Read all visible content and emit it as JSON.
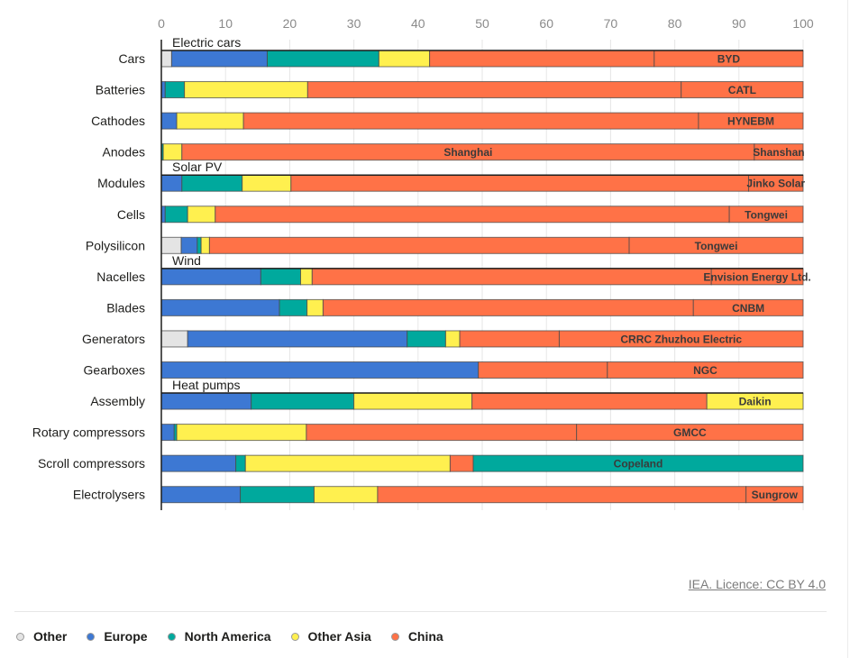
{
  "chart_data": {
    "type": "bar",
    "orientation": "horizontal",
    "stacked": true,
    "title": "",
    "xlabel": "",
    "ylabel": "",
    "xlim": [
      0,
      100
    ],
    "xticks": [
      0,
      10,
      20,
      30,
      40,
      50,
      60,
      70,
      80,
      90,
      100
    ],
    "grid": true,
    "legend_position": "bottom-left",
    "series_names": [
      "Other",
      "Europe",
      "North America",
      "Other Asia",
      "China"
    ],
    "colors": {
      "Other": "#e4e4e4",
      "Europe": "#3d78d3",
      "North America": "#00a99d",
      "Other Asia": "#fff04f",
      "China": "#ff7247"
    },
    "groups": [
      {
        "name": "Electric cars",
        "rows": [
          {
            "category": "Cars",
            "segments": [
              {
                "series": "Other",
                "value": 1.6
              },
              {
                "series": "Europe",
                "value": 14.9
              },
              {
                "series": "North America",
                "value": 17.4
              },
              {
                "series": "Other Asia",
                "value": 7.9
              },
              {
                "series": "China",
                "value": 35.0
              },
              {
                "series": "China",
                "value": 23.2,
                "label": "BYD"
              }
            ]
          },
          {
            "category": "Batteries",
            "segments": [
              {
                "series": "Europe",
                "value": 0.6
              },
              {
                "series": "North America",
                "value": 3.0
              },
              {
                "series": "Other Asia",
                "value": 19.2
              },
              {
                "series": "China",
                "value": 58.2
              },
              {
                "series": "China",
                "value": 19.0,
                "label": "CATL"
              }
            ]
          },
          {
            "category": "Cathodes",
            "segments": [
              {
                "series": "Europe",
                "value": 2.4
              },
              {
                "series": "Other Asia",
                "value": 10.4
              },
              {
                "series": "China",
                "value": 70.9
              },
              {
                "series": "China",
                "value": 16.3,
                "label": "HYNEBM"
              }
            ]
          },
          {
            "category": "Anodes",
            "segments": [
              {
                "series": "North America",
                "value": 0.3
              },
              {
                "series": "Other Asia",
                "value": 2.9
              },
              {
                "series": "China",
                "value": 89.2,
                "label": "Shanghai"
              },
              {
                "series": "China",
                "value": 7.6,
                "label": "Shanshan"
              }
            ]
          }
        ]
      },
      {
        "name": "Solar PV",
        "rows": [
          {
            "category": "Modules",
            "segments": [
              {
                "series": "Europe",
                "value": 3.2
              },
              {
                "series": "North America",
                "value": 9.4
              },
              {
                "series": "Other Asia",
                "value": 7.6
              },
              {
                "series": "China",
                "value": 71.3
              },
              {
                "series": "China",
                "value": 8.5,
                "label": "Jinko Solar"
              }
            ]
          },
          {
            "category": "Cells",
            "segments": [
              {
                "series": "Europe",
                "value": 0.6
              },
              {
                "series": "North America",
                "value": 3.5
              },
              {
                "series": "Other Asia",
                "value": 4.3
              },
              {
                "series": "China",
                "value": 80.1
              },
              {
                "series": "China",
                "value": 11.5,
                "label": "Tongwei"
              }
            ]
          },
          {
            "category": "Polysilicon",
            "segments": [
              {
                "series": "Other",
                "value": 3.1
              },
              {
                "series": "Europe",
                "value": 2.5
              },
              {
                "series": "North America",
                "value": 0.6
              },
              {
                "series": "Other Asia",
                "value": 1.3
              },
              {
                "series": "China",
                "value": 65.4
              },
              {
                "series": "China",
                "value": 27.1,
                "label": "Tongwei"
              }
            ]
          }
        ]
      },
      {
        "name": "Wind",
        "rows": [
          {
            "category": "Nacelles",
            "segments": [
              {
                "series": "Europe",
                "value": 15.5
              },
              {
                "series": "North America",
                "value": 6.2
              },
              {
                "series": "Other Asia",
                "value": 1.8
              },
              {
                "series": "China",
                "value": 62.2
              },
              {
                "series": "China",
                "value": 14.3,
                "label": "Envision Energy Ltd."
              }
            ]
          },
          {
            "category": "Blades",
            "segments": [
              {
                "series": "Europe",
                "value": 18.4
              },
              {
                "series": "North America",
                "value": 4.3
              },
              {
                "series": "Other Asia",
                "value": 2.5
              },
              {
                "series": "China",
                "value": 57.7
              },
              {
                "series": "China",
                "value": 17.1,
                "label": "CNBM"
              }
            ]
          },
          {
            "category": "Generators",
            "segments": [
              {
                "series": "Other",
                "value": 4.1
              },
              {
                "series": "Europe",
                "value": 34.2
              },
              {
                "series": "North America",
                "value": 6.0
              },
              {
                "series": "Other Asia",
                "value": 2.2
              },
              {
                "series": "China",
                "value": 15.5
              },
              {
                "series": "China",
                "value": 38.0,
                "label": "CRRC Zhuzhou Electric"
              }
            ]
          },
          {
            "category": "Gearboxes",
            "segments": [
              {
                "series": "Europe",
                "value": 49.4
              },
              {
                "series": "China",
                "value": 20.1
              },
              {
                "series": "China",
                "value": 30.5,
                "label": "NGC"
              }
            ]
          }
        ]
      },
      {
        "name": "Heat pumps",
        "rows": [
          {
            "category": "Assembly",
            "segments": [
              {
                "series": "Europe",
                "value": 14.0
              },
              {
                "series": "North America",
                "value": 16.0
              },
              {
                "series": "Other Asia",
                "value": 18.4
              },
              {
                "series": "China",
                "value": 36.6
              },
              {
                "series": "Other Asia",
                "value": 15.0,
                "label": "Daikin"
              }
            ]
          },
          {
            "category": "Rotary compressors",
            "segments": [
              {
                "series": "Europe",
                "value": 2.0
              },
              {
                "series": "North America",
                "value": 0.4
              },
              {
                "series": "Other Asia",
                "value": 20.2
              },
              {
                "series": "China",
                "value": 42.1
              },
              {
                "series": "China",
                "value": 35.3,
                "label": "GMCC"
              }
            ]
          },
          {
            "category": "Scroll compressors",
            "segments": [
              {
                "series": "Europe",
                "value": 11.6
              },
              {
                "series": "North America",
                "value": 1.5
              },
              {
                "series": "Other Asia",
                "value": 31.9
              },
              {
                "series": "China",
                "value": 3.6
              },
              {
                "series": "North America",
                "value": 51.4,
                "label": "Copeland"
              }
            ]
          }
        ]
      },
      {
        "name": "",
        "rows": [
          {
            "category": "Electrolysers",
            "segments": [
              {
                "series": "Europe",
                "value": 12.3
              },
              {
                "series": "North America",
                "value": 11.5
              },
              {
                "series": "Other Asia",
                "value": 9.9
              },
              {
                "series": "China",
                "value": 57.4
              },
              {
                "series": "China",
                "value": 8.9,
                "label": "Sungrow"
              }
            ]
          }
        ]
      }
    ]
  },
  "source": {
    "label": "IEA. Licence: CC BY 4.0"
  },
  "legend": {
    "items": [
      {
        "label": "Other",
        "color": "#e4e4e4"
      },
      {
        "label": "Europe",
        "color": "#3d78d3"
      },
      {
        "label": "North America",
        "color": "#00a99d"
      },
      {
        "label": "Other Asia",
        "color": "#fff04f"
      },
      {
        "label": "China",
        "color": "#ff7247"
      }
    ]
  }
}
